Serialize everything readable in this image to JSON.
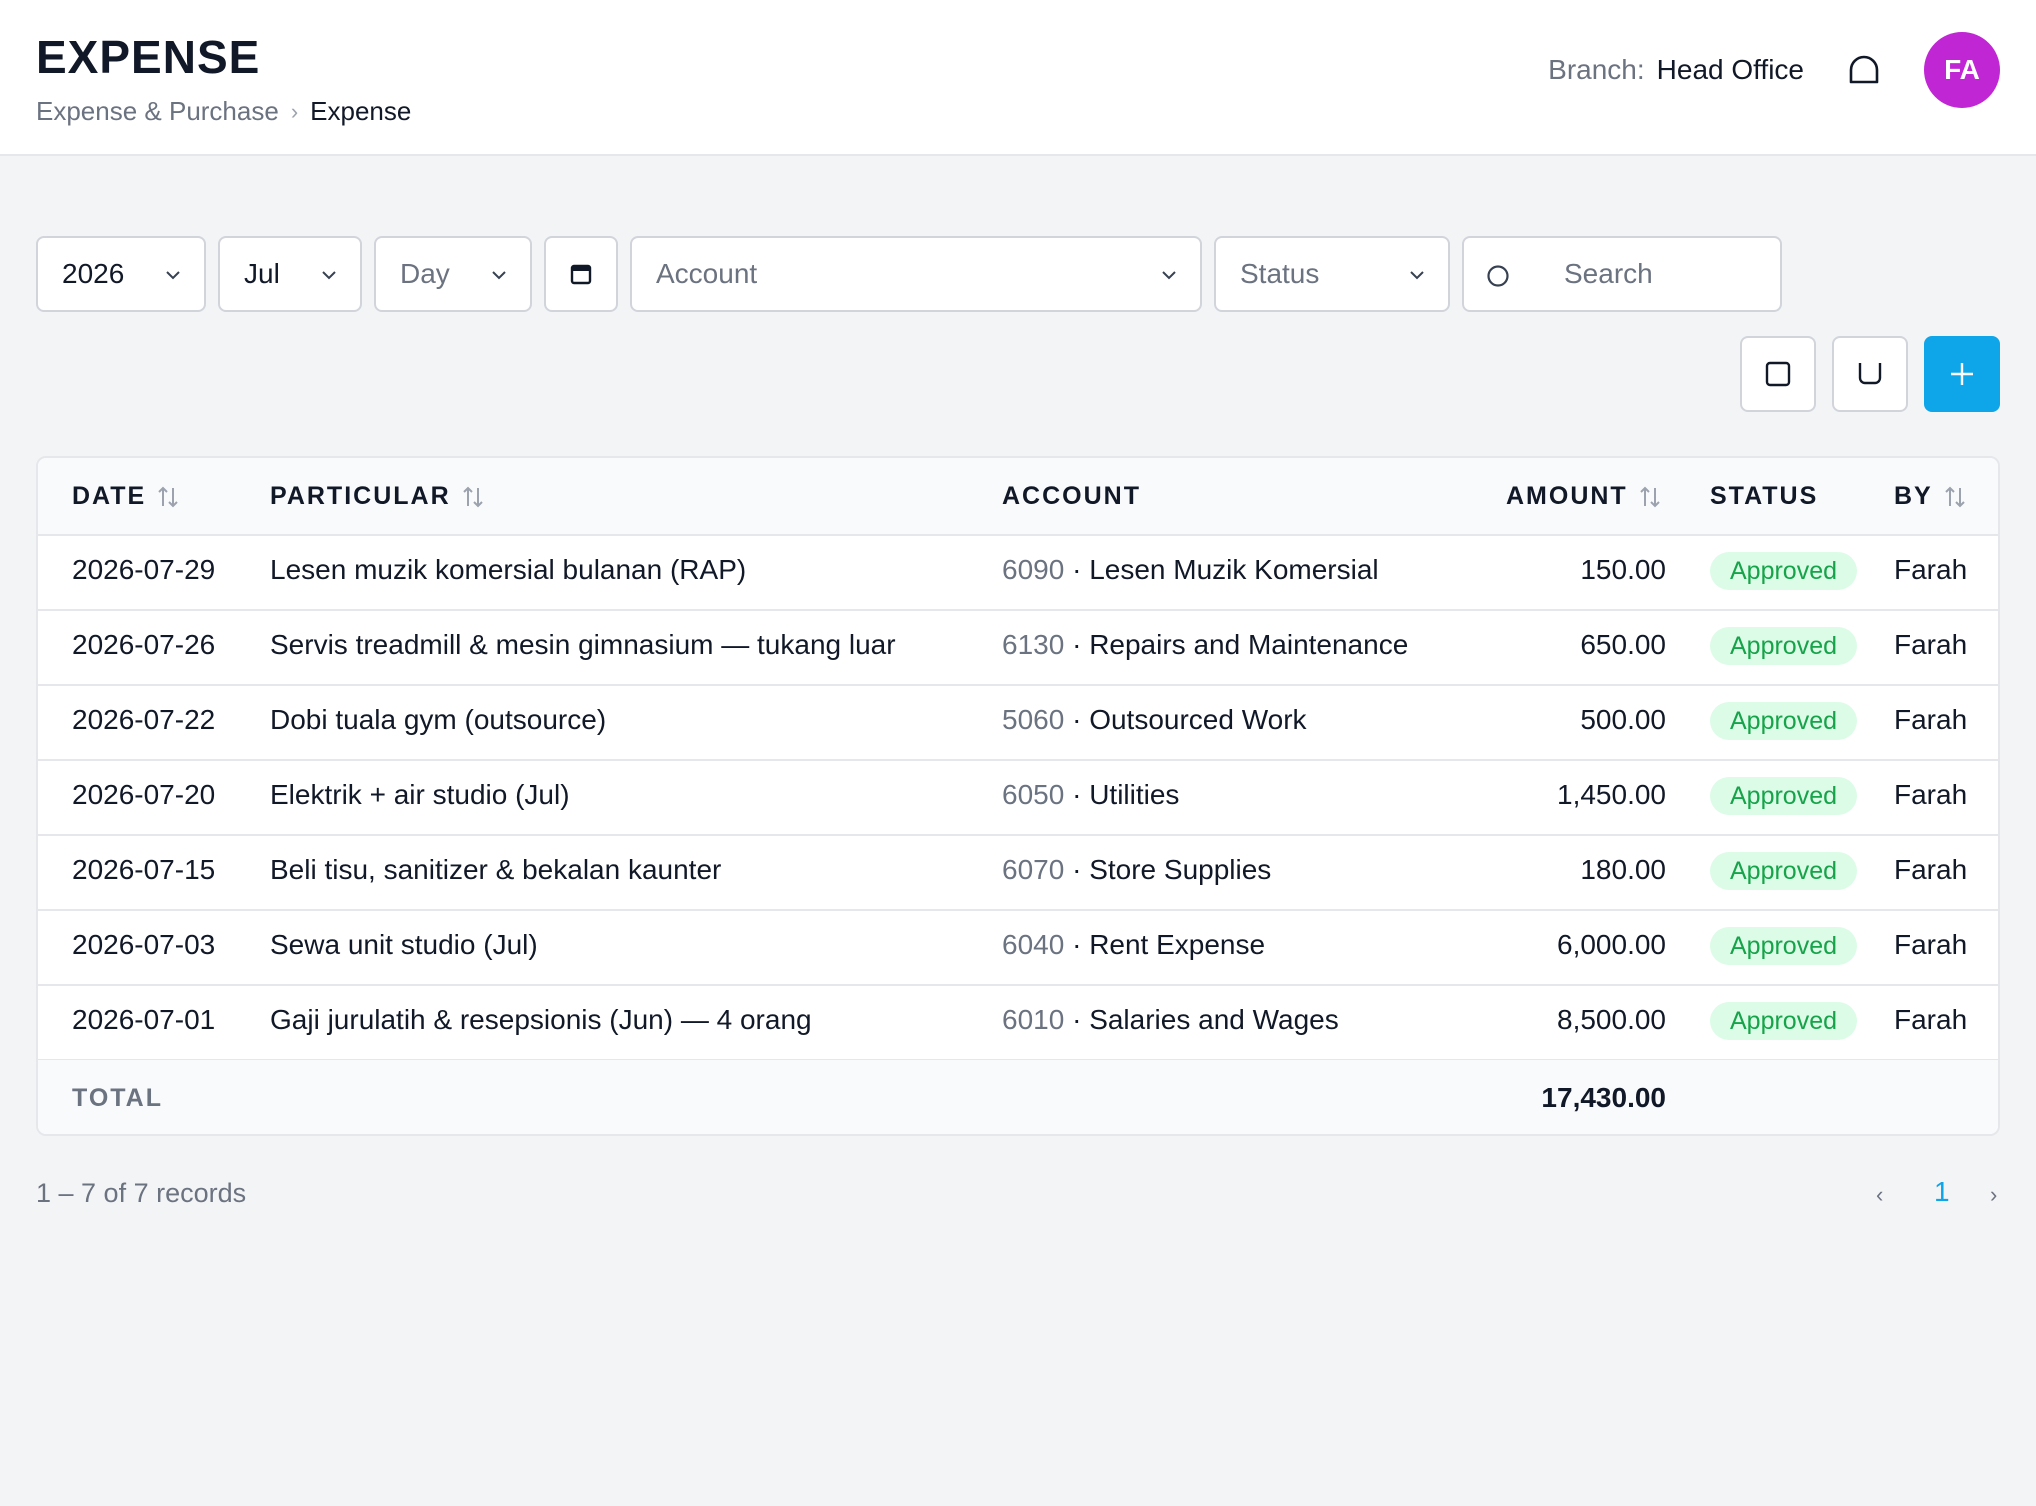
{
  "header": {
    "title": "EXPENSE",
    "breadcrumb": [
      "Expense & Purchase",
      "Expense"
    ],
    "branch_label": "Branch:",
    "branch_value": "Head Office",
    "avatar_initials": "FA",
    "avatar_color": "#c026d3"
  },
  "filters": {
    "year": "2026",
    "month": "Jul",
    "day_placeholder": "Day",
    "account_placeholder": "Account",
    "status_placeholder": "Status",
    "search_placeholder": "Search"
  },
  "table": {
    "columns": [
      "DATE",
      "PARTICULAR",
      "ACCOUNT",
      "AMOUNT",
      "STATUS",
      "BY"
    ],
    "rows": [
      {
        "date": "2026-07-29",
        "particular": "Lesen muzik komersial bulanan (RAP)",
        "account_code": "6090",
        "account_name": "Lesen Muzik Komersial",
        "amount": "150.00",
        "status": "Approved",
        "by": "Farah"
      },
      {
        "date": "2026-07-26",
        "particular": "Servis treadmill & mesin gimnasium — tukang luar",
        "account_code": "6130",
        "account_name": "Repairs and Maintenance",
        "amount": "650.00",
        "status": "Approved",
        "by": "Farah"
      },
      {
        "date": "2026-07-22",
        "particular": "Dobi tuala gym (outsource)",
        "account_code": "5060",
        "account_name": "Outsourced Work",
        "amount": "500.00",
        "status": "Approved",
        "by": "Farah"
      },
      {
        "date": "2026-07-20",
        "particular": "Elektrik + air studio (Jul)",
        "account_code": "6050",
        "account_name": "Utilities",
        "amount": "1,450.00",
        "status": "Approved",
        "by": "Farah"
      },
      {
        "date": "2026-07-15",
        "particular": "Beli tisu, sanitizer & bekalan kaunter",
        "account_code": "6070",
        "account_name": "Store Supplies",
        "amount": "180.00",
        "status": "Approved",
        "by": "Farah"
      },
      {
        "date": "2026-07-03",
        "particular": "Sewa unit studio (Jul)",
        "account_code": "6040",
        "account_name": "Rent Expense",
        "amount": "6,000.00",
        "status": "Approved",
        "by": "Farah"
      },
      {
        "date": "2026-07-01",
        "particular": "Gaji jurulatih & resepsionis (Jun) — 4 orang",
        "account_code": "6010",
        "account_name": "Salaries and Wages",
        "amount": "8,500.00",
        "status": "Approved",
        "by": "Farah"
      }
    ],
    "total_label": "TOTAL",
    "total_value": "17,430.00"
  },
  "pagination": {
    "summary": "1 – 7 of 7 records",
    "prev": "‹",
    "current_page": "1",
    "next": "›"
  },
  "colors": {
    "accent": "#0ea5e9",
    "approved_text": "#16a34a",
    "approved_bg": "#dcfce7"
  },
  "icons": {
    "bell": "bell-icon",
    "calendar": "calendar-icon",
    "search": "search-icon",
    "chevron": "chevron-down-icon",
    "sort": "sort-icon",
    "print": "square-icon",
    "download": "download-icon",
    "add": "plus-icon"
  }
}
